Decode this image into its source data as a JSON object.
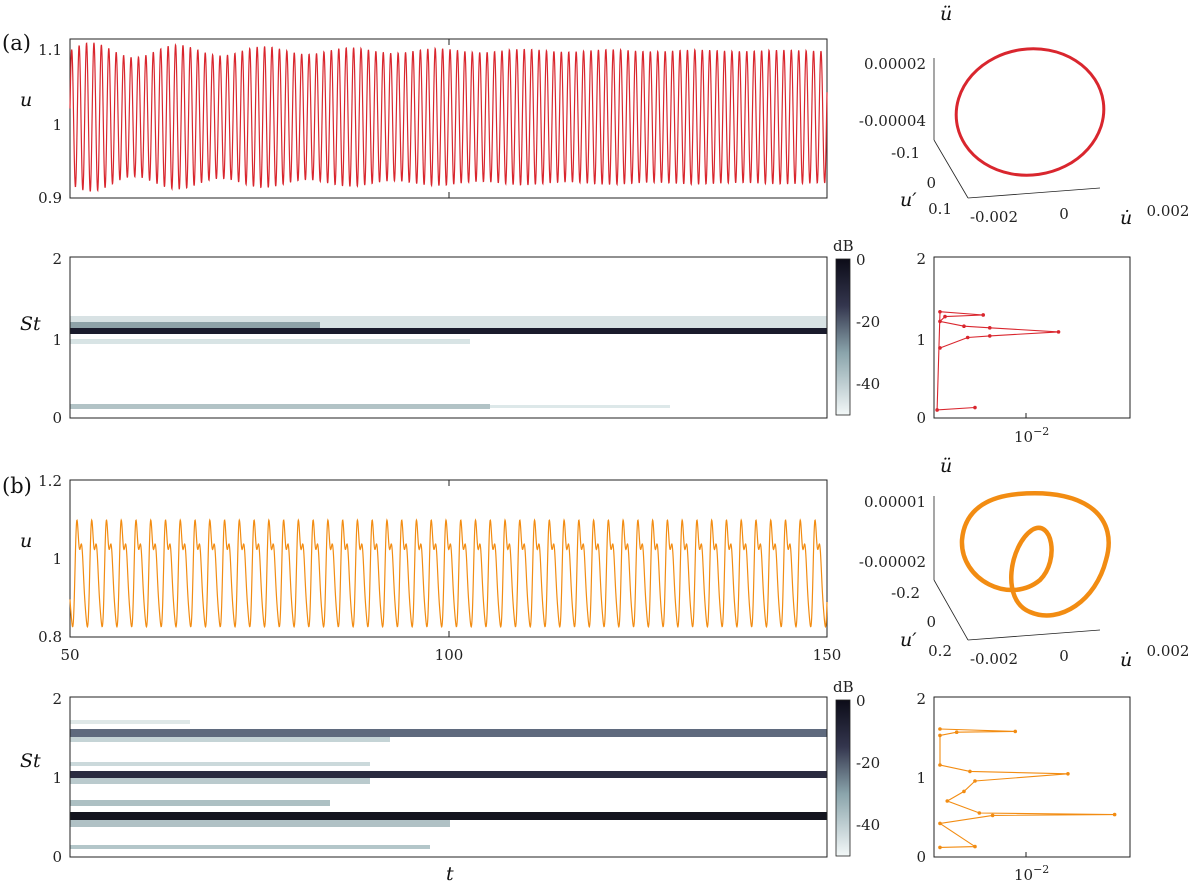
{
  "panels": [
    {
      "label": "(a)"
    },
    {
      "label": "(b)"
    }
  ],
  "colors": {
    "series_a": "#d9262e",
    "series_b": "#f28c12",
    "axis": "#222222"
  },
  "chart_data": [
    {
      "id": "a-timeseries",
      "type": "line",
      "ylabel": "u",
      "xlabel": "",
      "xlim": [
        50,
        150
      ],
      "ylim": [
        0.9,
        1.12
      ],
      "yticks": [
        "0.9",
        "1",
        "1.1"
      ],
      "xticks": [],
      "series": [
        {
          "mean": 1.012,
          "amplitude_range": [
            0.08,
            0.105
          ],
          "period": 0.98
        }
      ]
    },
    {
      "id": "a-spectrogram",
      "type": "heatmap",
      "ylabel": "St",
      "xlim": [
        50,
        150
      ],
      "ylim": [
        0,
        2
      ],
      "yticks": [
        "0",
        "1",
        "2"
      ],
      "bands": [
        {
          "st": 1.07,
          "level": 0
        },
        {
          "st": 1.2,
          "level": -30
        },
        {
          "st": 0.95,
          "level": -42
        },
        {
          "st": 0.13,
          "level": -38
        }
      ],
      "colorbar": {
        "label": "dB",
        "ticks": [
          "0",
          "-20",
          "-40"
        ],
        "range": [
          -50,
          0
        ]
      }
    },
    {
      "id": "a-phase",
      "type": "line",
      "axes": {
        "z": "ü",
        "x": "u̇",
        "y": "u′"
      },
      "ticks_z": [
        "0.00002",
        "-0.00004"
      ],
      "ticks_y": [
        "-0.1",
        "0",
        "0.1"
      ],
      "ticks_x": [
        "-0.002",
        "0",
        "0.002"
      ]
    },
    {
      "id": "a-spectrum",
      "type": "line",
      "xscale": "log",
      "ylim": [
        0,
        2
      ],
      "yticks": [
        "0",
        "1",
        "2"
      ],
      "xtick_label": "10^{-2}",
      "series": [
        {
          "points": [
            [
              0.0012,
              0.87
            ],
            [
              0.0028,
              1.0
            ],
            [
              0.0055,
              1.02
            ],
            [
              0.045,
              1.07
            ],
            [
              0.0055,
              1.12
            ],
            [
              0.0025,
              1.14
            ],
            [
              0.0012,
              1.2
            ],
            [
              0.0014,
              1.26
            ],
            [
              0.0045,
              1.28
            ],
            [
              0.0012,
              1.32
            ],
            [
              0.0011,
              0.1
            ],
            [
              0.0035,
              0.13
            ]
          ]
        }
      ]
    },
    {
      "id": "b-timeseries",
      "type": "line",
      "ylabel": "u",
      "xlabel": "",
      "xlim": [
        50,
        150
      ],
      "ylim": [
        0.8,
        1.2
      ],
      "yticks": [
        "0.8",
        "1",
        "1.2"
      ],
      "xticks": [
        "50",
        "100",
        "150"
      ],
      "series": [
        {
          "mean": 0.97,
          "period": 1.95
        }
      ]
    },
    {
      "id": "b-spectrogram",
      "type": "heatmap",
      "ylabel": "St",
      "xlabel": "t",
      "xlim": [
        50,
        150
      ],
      "ylim": [
        0,
        2
      ],
      "yticks": [
        "0",
        "1",
        "2"
      ],
      "bands": [
        {
          "st": 1.57,
          "level": -15
        },
        {
          "st": 1.03,
          "level": -5
        },
        {
          "st": 0.52,
          "level": 0
        },
        {
          "st": 1.68,
          "level": -42
        },
        {
          "st": 0.62,
          "level": -35
        },
        {
          "st": 0.13,
          "level": -40
        }
      ],
      "colorbar": {
        "label": "dB",
        "ticks": [
          "0",
          "-20",
          "-40"
        ],
        "range": [
          -50,
          0
        ]
      }
    },
    {
      "id": "b-phase",
      "type": "line",
      "axes": {
        "z": "ü",
        "x": "u̇",
        "y": "u′"
      },
      "ticks_z": [
        "0.00001",
        "-0.00002"
      ],
      "ticks_y": [
        "-0.2",
        "0",
        "0.2"
      ],
      "ticks_x": [
        "-0.002",
        "0",
        "0.002"
      ]
    },
    {
      "id": "b-spectrum",
      "type": "line",
      "xscale": "log",
      "ylim": [
        0,
        2
      ],
      "yticks": [
        "0",
        "1",
        "2"
      ],
      "xtick_label": "10^{-2}",
      "series": [
        {
          "points": [
            [
              0.0012,
              0.12
            ],
            [
              0.0035,
              0.13
            ],
            [
              0.0012,
              0.42
            ],
            [
              0.006,
              0.52
            ],
            [
              0.25,
              0.53
            ],
            [
              0.004,
              0.55
            ],
            [
              0.0015,
              0.7
            ],
            [
              0.0025,
              0.82
            ],
            [
              0.0035,
              0.95
            ],
            [
              0.06,
              1.04
            ],
            [
              0.003,
              1.07
            ],
            [
              0.0012,
              1.15
            ],
            [
              0.0012,
              1.52
            ],
            [
              0.002,
              1.56
            ],
            [
              0.012,
              1.57
            ],
            [
              0.0012,
              1.6
            ]
          ]
        }
      ]
    }
  ]
}
